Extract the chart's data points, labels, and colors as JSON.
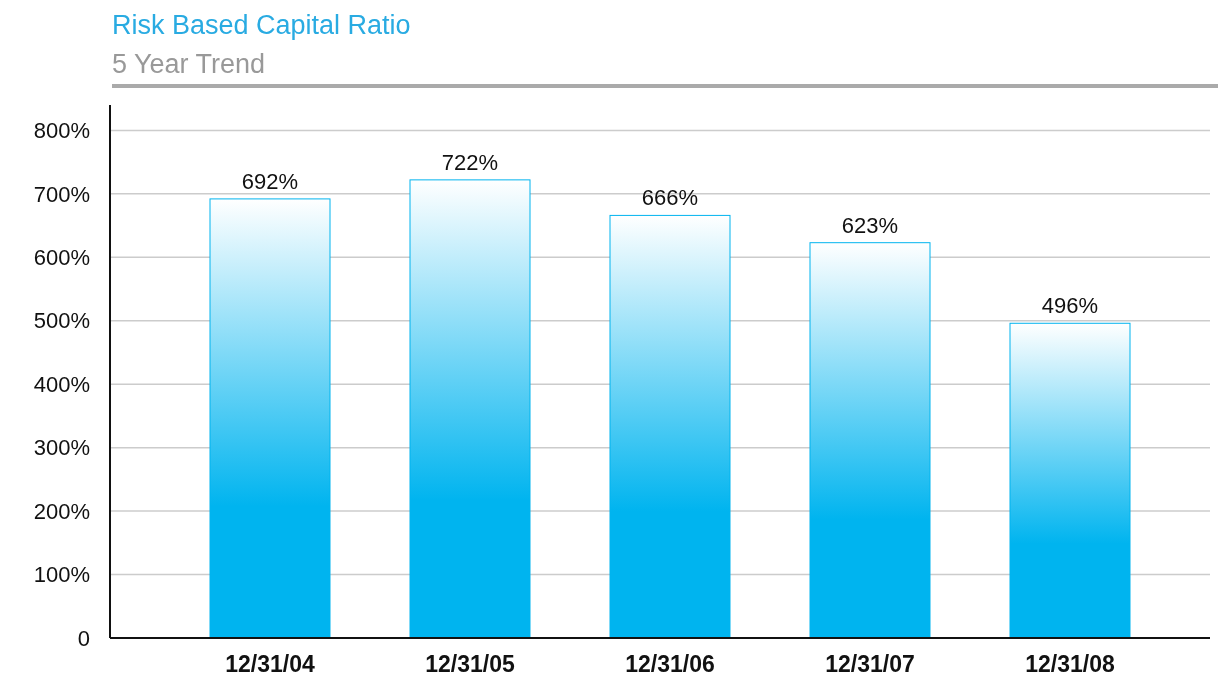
{
  "chart_data": {
    "type": "bar",
    "title": "Risk Based Capital Ratio",
    "subtitle": "5 Year Trend",
    "categories": [
      "12/31/04",
      "12/31/05",
      "12/31/06",
      "12/31/07",
      "12/31/08"
    ],
    "values": [
      692,
      722,
      666,
      623,
      496
    ],
    "color": "#00b4ef",
    "data_labels": true,
    "value_labels": [
      "692%",
      "722%",
      "666%",
      "623%",
      "496%"
    ],
    "ylim": [
      0,
      840
    ],
    "yticks": [
      0,
      {
        "value": 100,
        "label": "100%"
      },
      {
        "value": 200,
        "label": "200%"
      },
      {
        "value": 300,
        "label": "300%"
      },
      {
        "value": 400,
        "label": "400%"
      },
      {
        "value": 500,
        "label": "500%"
      },
      {
        "value": 600,
        "label": "600%"
      },
      {
        "value": 700,
        "label": "700%"
      },
      {
        "value": 800,
        "label": "800%"
      }
    ],
    "grid": "y"
  }
}
